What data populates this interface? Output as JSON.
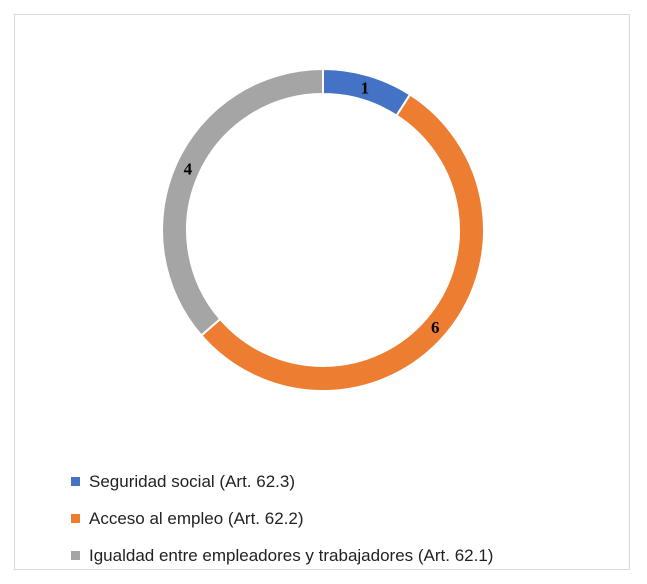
{
  "chart_data": {
    "type": "pie",
    "variant": "donut",
    "title": "",
    "slices": [
      {
        "label": "Seguridad social (Art. 62.3)",
        "value": 1,
        "data_label": "1",
        "color": "#4472C4"
      },
      {
        "label": "Acceso al empleo (Art. 62.2)",
        "value": 6,
        "data_label": "6",
        "color": "#ED7D31"
      },
      {
        "label": "Igualdad entre empleadores y trabajadores (Art. 62.1)",
        "value": 4,
        "data_label": "4",
        "color": "#A5A5A5"
      }
    ],
    "legend_placement": "bottom"
  }
}
